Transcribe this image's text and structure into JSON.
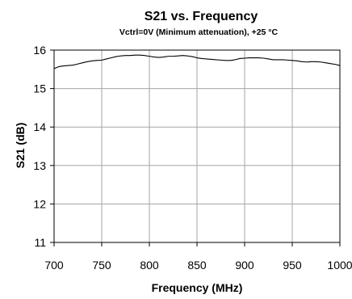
{
  "chart_data": {
    "type": "line",
    "title": "S21 vs. Frequency",
    "subtitle": "Vctrl=0V (Minimum attenuation), +25 °C",
    "xlabel": "Frequency (MHz)",
    "ylabel": "S21 (dB)",
    "xlim": [
      700,
      1000
    ],
    "ylim": [
      11,
      16
    ],
    "x_ticks": [
      "700",
      "750",
      "800",
      "850",
      "900",
      "950",
      "1000"
    ],
    "y_ticks": [
      "11",
      "12",
      "13",
      "14",
      "15",
      "16"
    ],
    "grid": true,
    "legend": "none",
    "series": [
      {
        "color": "#000000",
        "x": [
          700,
          705,
          710,
          715,
          720,
          725,
          730,
          735,
          740,
          745,
          750,
          755,
          760,
          765,
          770,
          775,
          780,
          785,
          790,
          795,
          800,
          805,
          810,
          815,
          820,
          825,
          830,
          835,
          840,
          845,
          850,
          855,
          860,
          865,
          870,
          875,
          880,
          885,
          890,
          895,
          900,
          905,
          910,
          915,
          920,
          925,
          930,
          935,
          940,
          945,
          950,
          955,
          960,
          965,
          970,
          975,
          980,
          985,
          990,
          995,
          1000
        ],
        "y": [
          15.52,
          15.57,
          15.59,
          15.6,
          15.61,
          15.64,
          15.67,
          15.7,
          15.72,
          15.73,
          15.74,
          15.77,
          15.8,
          15.83,
          15.85,
          15.86,
          15.86,
          15.87,
          15.87,
          15.86,
          15.84,
          15.82,
          15.81,
          15.82,
          15.84,
          15.84,
          15.85,
          15.86,
          15.85,
          15.83,
          15.8,
          15.78,
          15.77,
          15.76,
          15.75,
          15.74,
          15.73,
          15.73,
          15.75,
          15.78,
          15.79,
          15.8,
          15.8,
          15.8,
          15.79,
          15.77,
          15.75,
          15.75,
          15.75,
          15.74,
          15.73,
          15.72,
          15.7,
          15.69,
          15.7,
          15.7,
          15.69,
          15.67,
          15.65,
          15.63,
          15.6
        ]
      }
    ]
  }
}
